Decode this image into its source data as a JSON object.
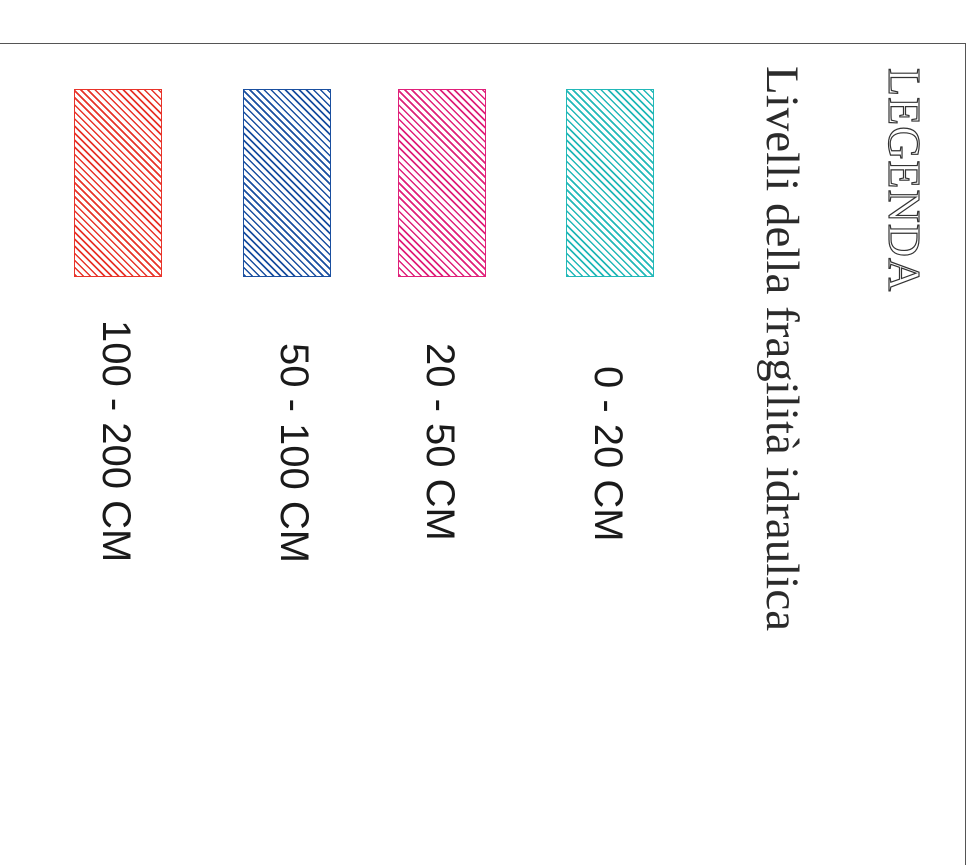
{
  "legend": {
    "title": "LEGENDA",
    "subtitle": "Livelli della fragilità idraulica",
    "items": [
      {
        "label": "0 - 20 CM",
        "color": "#22b8b8"
      },
      {
        "label": "20 - 50 CM",
        "color": "#e0207a"
      },
      {
        "label": "50 - 100 CM",
        "color": "#1a4fa0"
      },
      {
        "label": "100 - 200 CM",
        "color": "#e8342a"
      }
    ]
  }
}
